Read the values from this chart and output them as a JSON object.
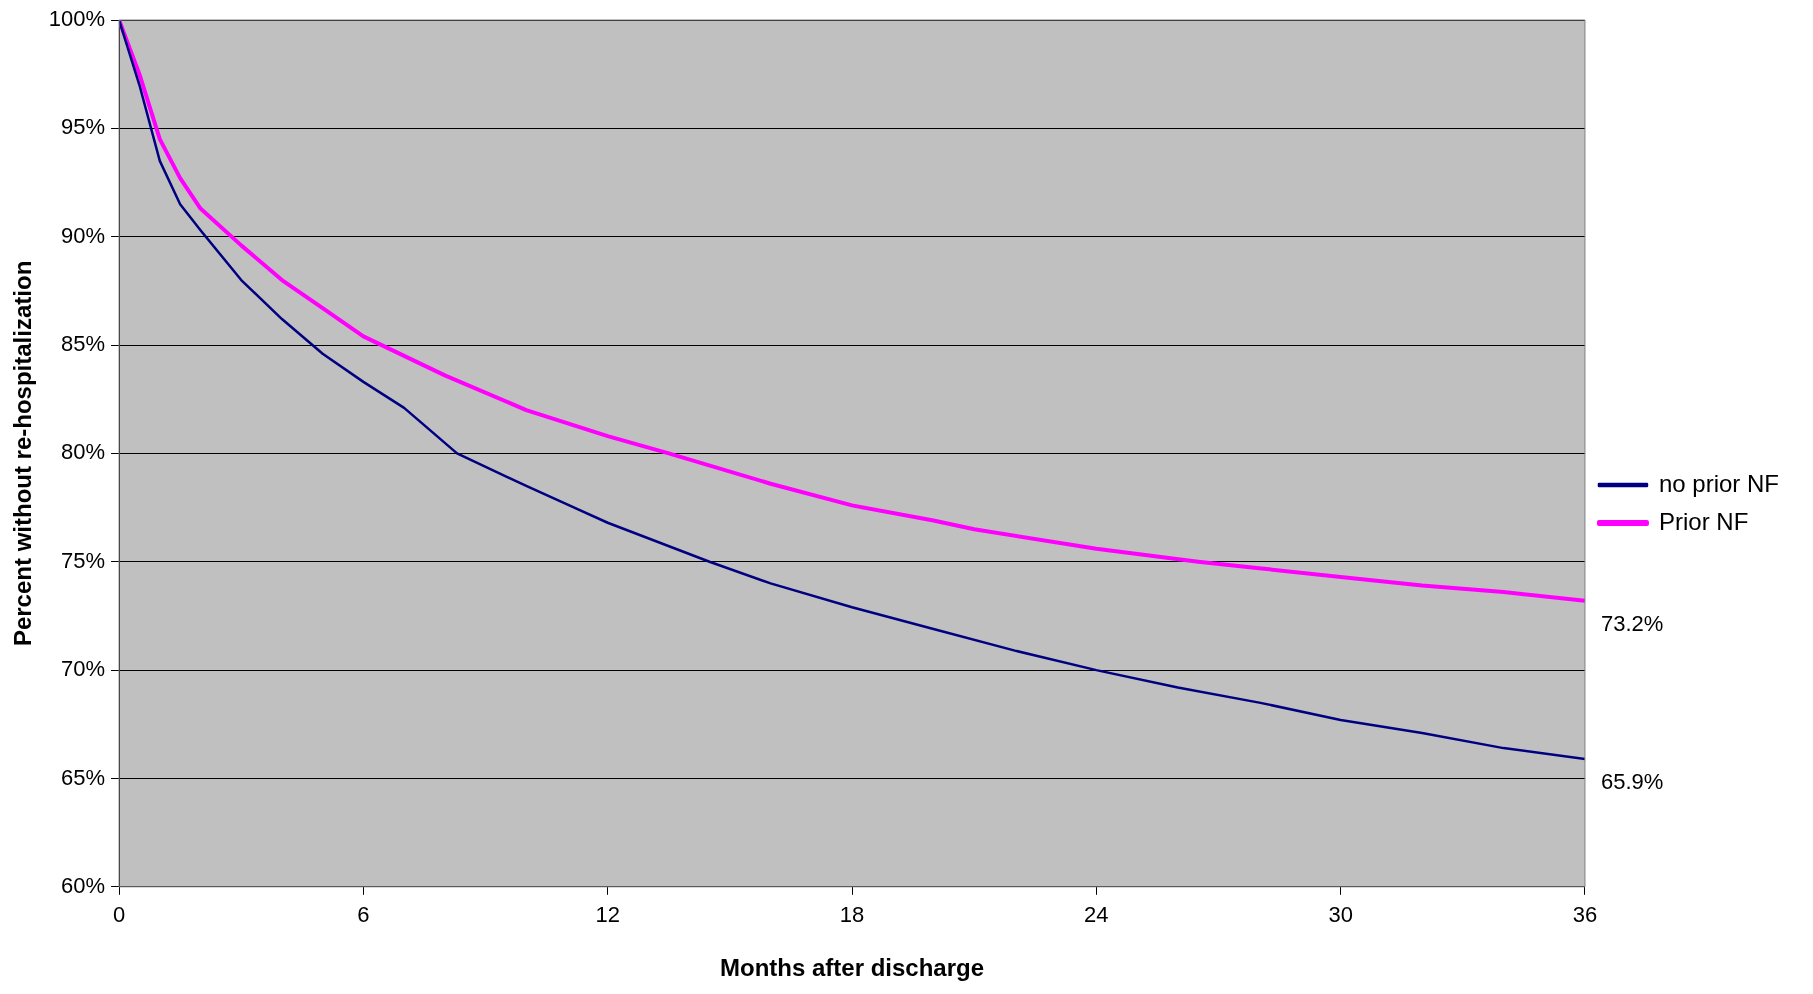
{
  "chart_data": {
    "type": "line",
    "xlabel": "Months after discharge",
    "ylabel": "Percent without re-hospitalization",
    "xlim": [
      0,
      36
    ],
    "xticks": [
      0,
      6,
      12,
      18,
      24,
      30,
      36
    ],
    "ylim": [
      60,
      100
    ],
    "yticks": [
      {
        "value": 60,
        "label": "60%"
      },
      {
        "value": 65,
        "label": "65%"
      },
      {
        "value": 70,
        "label": "70%"
      },
      {
        "value": 75,
        "label": "75%"
      },
      {
        "value": 80,
        "label": "80%"
      },
      {
        "value": 85,
        "label": "85%"
      },
      {
        "value": 90,
        "label": "90%"
      },
      {
        "value": 95,
        "label": "95%"
      },
      {
        "value": 100,
        "label": "100%"
      }
    ],
    "grid": "y",
    "legend": "right",
    "marker": "none",
    "line_style": "solid",
    "series": [
      {
        "name": "no prior NF",
        "color": "#000080",
        "x": [
          0,
          0.5,
          1,
          1.5,
          2,
          3,
          4,
          5,
          6,
          7,
          8.3,
          10,
          12,
          14.5,
          16,
          18,
          20,
          22,
          24,
          26,
          28,
          30,
          32,
          34,
          36
        ],
        "values": [
          100,
          97,
          93.5,
          91.5,
          90.3,
          88,
          86.2,
          84.6,
          83.3,
          82.1,
          80,
          78.5,
          76.8,
          75,
          74,
          72.9,
          71.9,
          70.9,
          70,
          69.2,
          68.5,
          67.7,
          67.1,
          66.4,
          65.9
        ]
      },
      {
        "name": "Prior NF",
        "color": "#ff00ff",
        "x": [
          0,
          0.5,
          1,
          1.5,
          2,
          3,
          4,
          5,
          6,
          8,
          10,
          12,
          13.5,
          16,
          18,
          20,
          21,
          24,
          26.5,
          28,
          30,
          32,
          34,
          36
        ],
        "values": [
          100,
          97.5,
          94.5,
          92.7,
          91.3,
          89.6,
          88,
          86.7,
          85.4,
          83.6,
          82,
          80.8,
          80,
          78.6,
          77.6,
          76.9,
          76.5,
          75.6,
          75,
          74.7,
          74.3,
          73.9,
          73.6,
          73.2
        ]
      }
    ],
    "annotations": [
      {
        "text": "73.2%",
        "x": 36,
        "y": 73.2
      },
      {
        "text": "65.9%",
        "x": 36,
        "y": 65.9
      }
    ]
  }
}
